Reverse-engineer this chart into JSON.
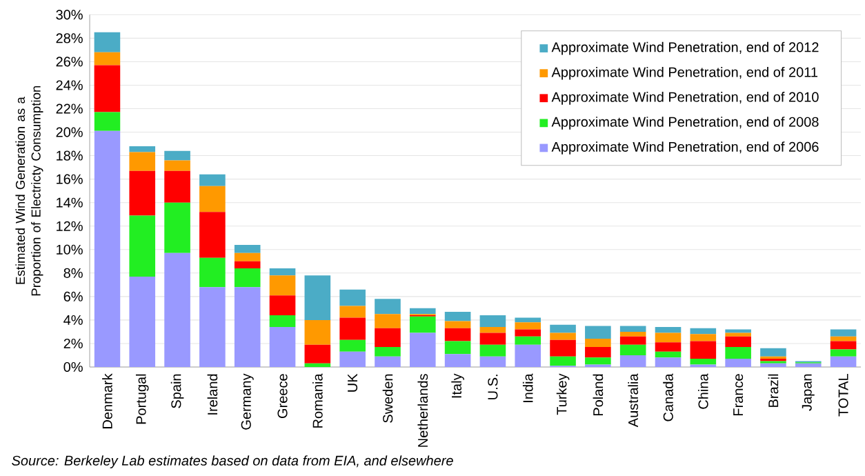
{
  "chart_data": {
    "type": "bar",
    "stacked": true,
    "ylabel": "Estimated Wind Generation as a Proportion of Electricty Consumption",
    "categories": [
      "Denmark",
      "Portugal",
      "Spain",
      "Ireland",
      "Germany",
      "Greece",
      "Romania",
      "UK",
      "Sweden",
      "Netherlands",
      "Italy",
      "U.S.",
      "India",
      "Turkey",
      "Poland",
      "Australia",
      "Canada",
      "China",
      "France",
      "Brazil",
      "Japan",
      "TOTAL"
    ],
    "series": [
      {
        "name": "Approximate Wind Penetration, end of 2006",
        "color": "#9999ff",
        "values": [
          20.1,
          7.7,
          9.7,
          6.8,
          6.8,
          3.4,
          0,
          1.3,
          0.9,
          2.9,
          1.1,
          0.9,
          1.9,
          0.1,
          0.2,
          1.0,
          0.8,
          0.2,
          0.7,
          0.3,
          0.3,
          0.9
        ]
      },
      {
        "name": "Approximate Wind Penetration, end of 2008",
        "color": "#22ee22",
        "values": [
          1.6,
          5.2,
          4.3,
          2.5,
          1.6,
          1.0,
          0.3,
          1.0,
          0.8,
          1.4,
          1.1,
          1.0,
          0.7,
          0.8,
          0.6,
          0.9,
          0.5,
          0.5,
          1.0,
          0.2,
          0.1,
          0.6
        ]
      },
      {
        "name": "Approximate Wind Penetration, end of 2010",
        "color": "#ff0000",
        "values": [
          4.0,
          3.8,
          2.7,
          3.9,
          0.6,
          1.7,
          1.6,
          1.9,
          1.6,
          0.1,
          1.1,
          1.0,
          0.6,
          1.4,
          0.9,
          0.7,
          0.8,
          1.5,
          0.9,
          0.2,
          0.0,
          0.7
        ]
      },
      {
        "name": "Approximate Wind Penetration, end of 2011",
        "color": "#ff9900",
        "values": [
          1.1,
          1.6,
          0.9,
          2.2,
          0.7,
          1.7,
          2.1,
          1.0,
          1.2,
          0.1,
          0.6,
          0.5,
          0.6,
          0.6,
          0.7,
          0.4,
          0.8,
          0.6,
          0.3,
          0.2,
          0.0,
          0.4
        ]
      },
      {
        "name": "Approximate Wind Penetration, end of 2012",
        "color": "#4bacc6",
        "values": [
          1.7,
          0.5,
          0.8,
          1.0,
          0.7,
          0.6,
          3.8,
          1.4,
          1.3,
          0.5,
          0.8,
          1.0,
          0.4,
          0.7,
          1.1,
          0.5,
          0.5,
          0.5,
          0.3,
          0.7,
          0.1,
          0.6
        ]
      }
    ],
    "ylim": [
      0,
      30
    ],
    "yticks": [
      {
        "value": 0,
        "label": "0%"
      },
      {
        "value": 2,
        "label": "2%"
      },
      {
        "value": 4,
        "label": "4%"
      },
      {
        "value": 6,
        "label": "6%"
      },
      {
        "value": 8,
        "label": "8%"
      },
      {
        "value": 10,
        "label": "10%"
      },
      {
        "value": 12,
        "label": "12%"
      },
      {
        "value": 14,
        "label": "14%"
      },
      {
        "value": 16,
        "label": "16%"
      },
      {
        "value": 18,
        "label": "18%"
      },
      {
        "value": 20,
        "label": "20%"
      },
      {
        "value": 22,
        "label": "22%"
      },
      {
        "value": 24,
        "label": "24%"
      },
      {
        "value": 26,
        "label": "26%"
      },
      {
        "value": 28,
        "label": "28%"
      },
      {
        "value": 30,
        "label": "30%"
      }
    ],
    "grid": "y",
    "legend": "top right",
    "annotations": [
      "Source: Berkeley Lab estimates based on data from EIA, and elsewhere"
    ]
  }
}
